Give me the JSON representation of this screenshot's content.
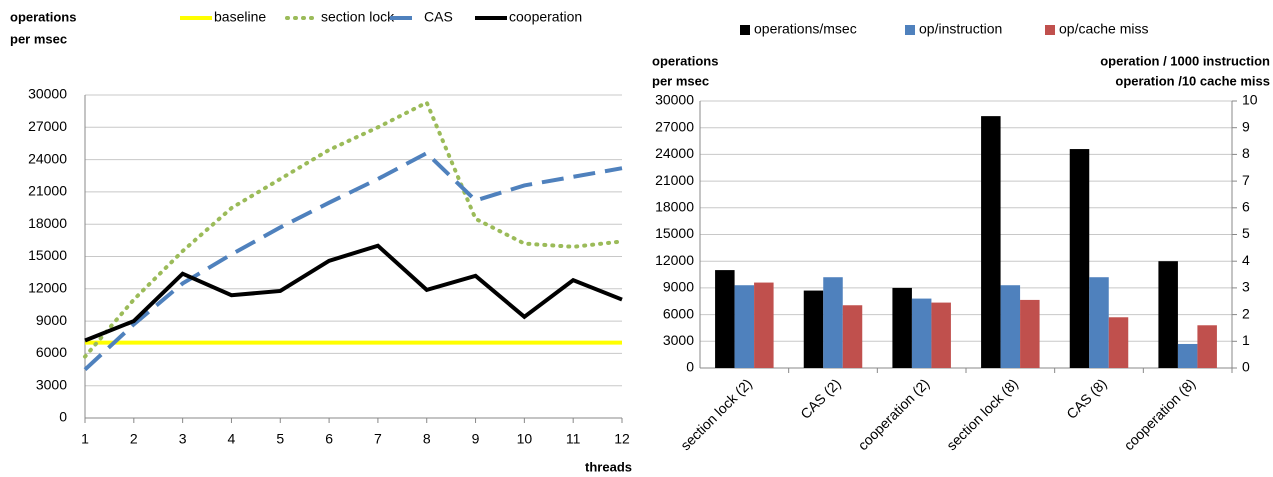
{
  "chart_data": [
    {
      "type": "line",
      "y_label": [
        "operations",
        "per msec"
      ],
      "x_label": "threads",
      "x": [
        1,
        2,
        3,
        4,
        5,
        6,
        7,
        8,
        9,
        10,
        11,
        12
      ],
      "xlim": [
        1,
        12
      ],
      "xticks": [
        1,
        2,
        3,
        4,
        5,
        6,
        7,
        8,
        9,
        10,
        11,
        12
      ],
      "ylim": [
        0,
        30000
      ],
      "yticks": [
        0,
        3000,
        6000,
        9000,
        12000,
        15000,
        18000,
        21000,
        24000,
        27000,
        30000
      ],
      "grid": true,
      "legend": "top",
      "series": [
        {
          "name": "baseline",
          "color": "#ffff00",
          "style": "solid",
          "values": [
            7000,
            7000,
            7000,
            7000,
            7000,
            7000,
            7000,
            7000,
            7000,
            7000,
            7000,
            7000
          ]
        },
        {
          "name": "section lock",
          "color": "#9bbb59",
          "style": "dotted",
          "values": [
            5700,
            11000,
            15500,
            19500,
            22200,
            24900,
            27000,
            29300,
            18500,
            16200,
            15900,
            16400
          ]
        },
        {
          "name": "CAS",
          "color": "#4f81bd",
          "style": "dashed",
          "values": [
            4500,
            8700,
            12500,
            15200,
            17700,
            20000,
            22200,
            24600,
            20200,
            21600,
            22400,
            23200
          ]
        },
        {
          "name": "cooperation",
          "color": "#000000",
          "style": "solid",
          "values": [
            7200,
            9000,
            13400,
            11400,
            11800,
            14600,
            16000,
            11900,
            13200,
            9400,
            12800,
            11000
          ]
        }
      ]
    },
    {
      "type": "bar",
      "y_label": [
        "operations",
        "per msec"
      ],
      "y2_label": [
        "operation / 1000 instruction",
        "operation /10 cache miss"
      ],
      "categories": [
        "section lock (2)",
        "CAS (2)",
        "cooperation (2)",
        "section lock (8)",
        "CAS (8)",
        "cooperation (8)"
      ],
      "ylim": [
        0,
        30000
      ],
      "yticks": [
        0,
        3000,
        6000,
        9000,
        12000,
        15000,
        18000,
        21000,
        24000,
        27000,
        30000
      ],
      "y2lim": [
        0,
        10
      ],
      "y2ticks": [
        0,
        1,
        2,
        3,
        4,
        5,
        6,
        7,
        8,
        9,
        10
      ],
      "grid": true,
      "legend": "top",
      "series": [
        {
          "name": "operations/msec",
          "color": "#000000",
          "values": [
            11000,
            8700,
            9000,
            28300,
            24600,
            12000
          ]
        },
        {
          "name": "op/instruction",
          "color": "#4f81bd",
          "axis": "y2",
          "values": [
            3.1,
            3.4,
            2.6,
            3.1,
            3.4,
            0.9
          ]
        },
        {
          "name": "op/cache miss",
          "color": "#c0504d",
          "axis": "y2",
          "values": [
            3.2,
            2.35,
            2.45,
            2.55,
            1.9,
            1.6
          ]
        }
      ]
    }
  ]
}
